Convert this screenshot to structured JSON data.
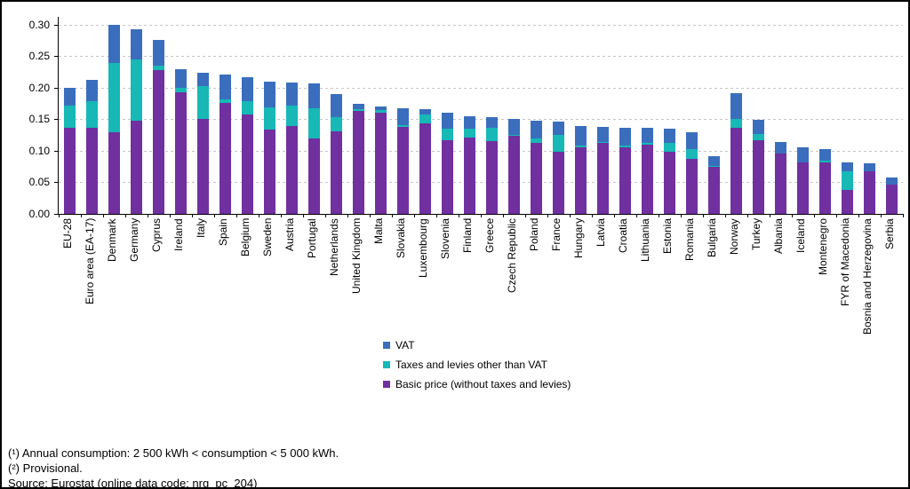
{
  "chart_data": {
    "type": "bar",
    "stacked": true,
    "title": "",
    "xlabel": "",
    "ylabel": "",
    "ylim": [
      0,
      0.3
    ],
    "ytick_step": 0.05,
    "ytick_labels": [
      "0.00",
      "0.05",
      "0.10",
      "0.15",
      "0.20",
      "0.25",
      "0.30"
    ],
    "grid": "horizontal-dashed",
    "legend_position": "below-plot-left-of-center",
    "categories": [
      "EU-28",
      "Euro area (EA-17)",
      "Denmark",
      "Germany",
      "Cyprus",
      "Ireland",
      "Italy",
      "Spain",
      "Belgium",
      "Sweden",
      "Austria",
      "Portugal",
      "Netherlands",
      "United Kingdom",
      "Malta",
      "Slovakia",
      "Luxembourg",
      "Slovenia",
      "Finland",
      "Greece",
      "Czech Republic",
      "Poland",
      "France",
      "Hungary",
      "Latvia",
      "Croatia",
      "Lithuania",
      "Estonia",
      "Romania",
      "Bulgaria",
      "Norway",
      "Turkey",
      "Albania",
      "Iceland",
      "Montenegro",
      "FYR of Macedonia",
      "Bosnia and Herzegovina",
      "Serbia"
    ],
    "series": [
      {
        "name": "Basic price (without taxes and levies)",
        "color": "#7030A0",
        "values": [
          0.137,
          0.136,
          0.129,
          0.148,
          0.228,
          0.192,
          0.15,
          0.176,
          0.158,
          0.133,
          0.139,
          0.119,
          0.131,
          0.163,
          0.16,
          0.138,
          0.143,
          0.117,
          0.121,
          0.115,
          0.124,
          0.113,
          0.099,
          0.105,
          0.113,
          0.106,
          0.11,
          0.099,
          0.087,
          0.075,
          0.136,
          0.117,
          0.095,
          0.081,
          0.082,
          0.038,
          0.068,
          0.047
        ]
      },
      {
        "name": "Taxes and levies other than VAT",
        "color": "#17B8B5",
        "values": [
          0.035,
          0.042,
          0.11,
          0.097,
          0.007,
          0.008,
          0.053,
          0.006,
          0.021,
          0.036,
          0.033,
          0.048,
          0.023,
          0.003,
          0.005,
          0.002,
          0.014,
          0.018,
          0.014,
          0.022,
          0.001,
          0.007,
          0.026,
          0.004,
          0.001,
          0.003,
          0.002,
          0.013,
          0.015,
          0.001,
          0.015,
          0.009,
          0.0,
          0.001,
          0.002,
          0.03,
          0.0,
          0.0
        ]
      },
      {
        "name": "VAT",
        "color": "#3A6EBD",
        "values": [
          0.028,
          0.035,
          0.06,
          0.047,
          0.04,
          0.029,
          0.02,
          0.039,
          0.037,
          0.04,
          0.036,
          0.04,
          0.036,
          0.008,
          0.005,
          0.028,
          0.009,
          0.025,
          0.02,
          0.016,
          0.026,
          0.027,
          0.021,
          0.03,
          0.024,
          0.028,
          0.024,
          0.023,
          0.028,
          0.016,
          0.04,
          0.023,
          0.019,
          0.024,
          0.019,
          0.013,
          0.012,
          0.01
        ]
      }
    ]
  },
  "legend": {
    "items": [
      {
        "label": "VAT",
        "color": "#3A6EBD"
      },
      {
        "label": "Taxes and levies other than VAT",
        "color": "#17B8B5"
      },
      {
        "label": "Basic price (without taxes and levies)",
        "color": "#7030A0"
      }
    ]
  },
  "footnotes": {
    "lines": [
      "(¹) Annual consumption: 2 500 kWh < consumption < 5 000 kWh.",
      "(²) Provisional.",
      "Source: Eurostat (online data code: nrg_pc_204)"
    ]
  },
  "colors": {
    "vat": "#3A6EBD",
    "taxes_other": "#17B8B5",
    "basic_price": "#7030A0",
    "gridline": "#C7C7C7",
    "axis": "#000000"
  }
}
